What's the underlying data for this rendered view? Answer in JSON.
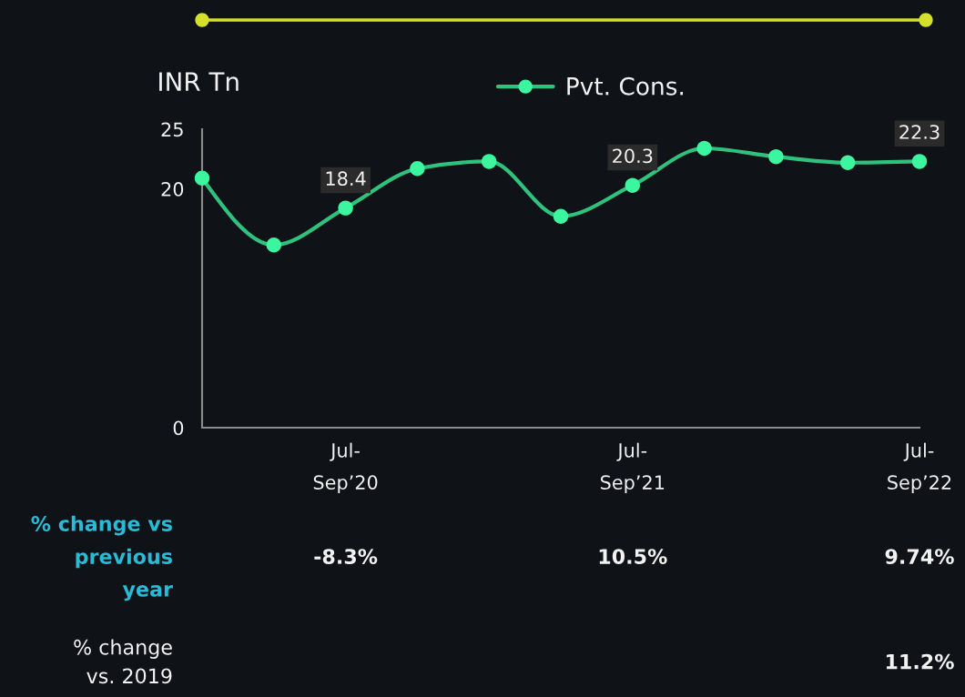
{
  "chart_data": {
    "type": "line",
    "ylabel": "INR Tn",
    "categories": [
      null,
      null,
      "Jul-\nSep’20",
      null,
      null,
      null,
      "Jul-\nSep’21",
      null,
      null,
      null,
      "Jul-\nSep’22"
    ],
    "series": [
      {
        "name": "Pvt. Cons.",
        "color": "#2fc27d",
        "values": [
          20.9,
          15.3,
          18.4,
          21.7,
          22.3,
          17.7,
          20.3,
          23.4,
          22.7,
          22.2,
          22.3
        ],
        "value_labels": [
          null,
          null,
          "18.4",
          null,
          null,
          null,
          "20.3",
          null,
          null,
          null,
          "22.3"
        ]
      }
    ],
    "ylim": [
      0,
      25
    ],
    "yticks": [
      0,
      20,
      25
    ],
    "legend": "top",
    "marker": "circle",
    "line_style": "solid",
    "annotations": [
      "% change vs\nprevious\nyear",
      "-8.3%",
      "10.5%",
      "9.74%",
      "% change\nvs. 2019",
      "11.2%"
    ]
  }
}
